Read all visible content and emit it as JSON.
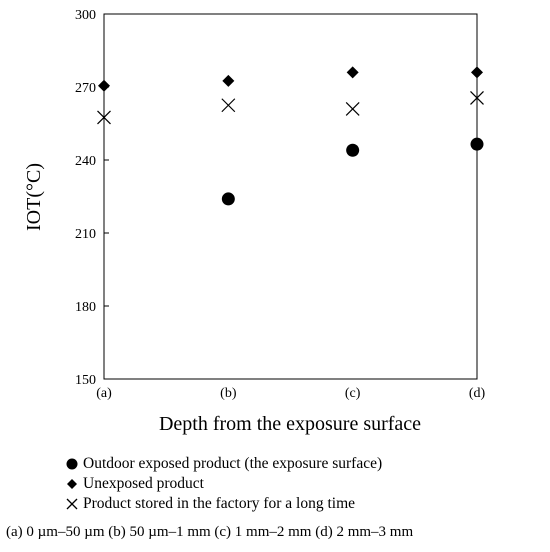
{
  "chart_data": {
    "type": "scatter",
    "title": "",
    "xlabel": "Depth from the exposure surface",
    "ylabel": "IOT(°C)",
    "categories": [
      "(a)",
      "(b)",
      "(c)",
      "(d)"
    ],
    "ylim": [
      150,
      300
    ],
    "yticks": [
      150,
      180,
      210,
      240,
      270,
      300
    ],
    "grid": false,
    "legend_position": "bottom",
    "series": [
      {
        "name": "Outdoor exposed product (the exposure surface)",
        "marker": "circle",
        "values": [
          null,
          224,
          244,
          246.5
        ]
      },
      {
        "name": "Unexposed product",
        "marker": "diamond",
        "values": [
          270.5,
          272.5,
          276,
          276
        ]
      },
      {
        "name": "Product stored in the factory for a long time",
        "marker": "x",
        "values": [
          257.5,
          262.5,
          261,
          265.5
        ]
      }
    ],
    "footnote": "(a) 0 µm–50 µm  (b) 50 µm–1 mm  (c) 1 mm–2 mm  (d) 2 mm–3 mm"
  }
}
